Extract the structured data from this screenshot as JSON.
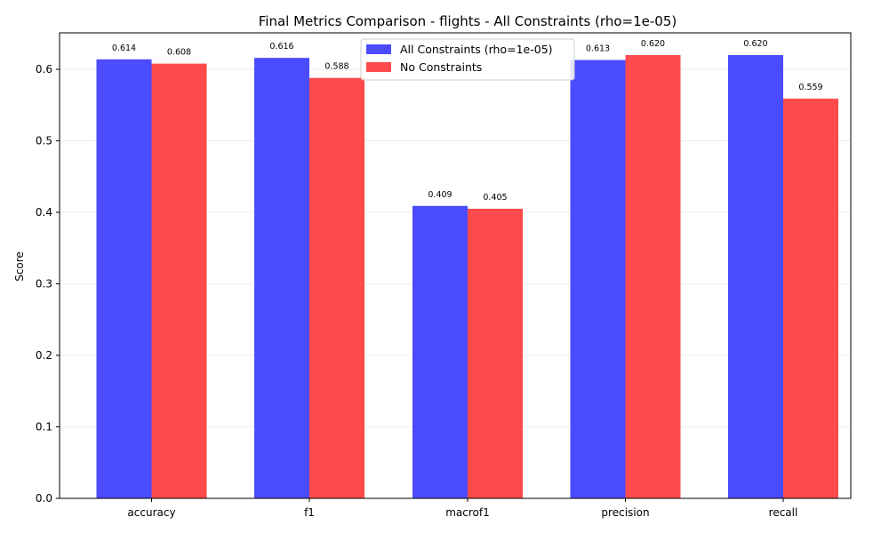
{
  "chart_data": {
    "type": "bar",
    "title": "Final Metrics Comparison - flights - All Constraints (rho=1e-05)",
    "xlabel": "",
    "ylabel": "Score",
    "categories": [
      "accuracy",
      "f1",
      "macrof1",
      "precision",
      "recall"
    ],
    "series": [
      {
        "name": "All Constraints (rho=1e-05)",
        "color": "#4b4bff",
        "values": [
          0.614,
          0.616,
          0.409,
          0.613,
          0.62
        ],
        "labels": [
          "0.614",
          "0.616",
          "0.409",
          "0.613",
          "0.620"
        ]
      },
      {
        "name": "No Constraints",
        "color": "#ff4b4b",
        "values": [
          0.608,
          0.588,
          0.405,
          0.62,
          0.559
        ],
        "labels": [
          "0.608",
          "0.588",
          "0.405",
          "0.620",
          "0.559"
        ]
      }
    ],
    "ylim": [
      0,
      0.651
    ],
    "yticks": [
      0.0,
      0.1,
      0.2,
      0.3,
      0.4,
      0.5,
      0.6
    ],
    "ytick_labels": [
      "0.0",
      "0.1",
      "0.2",
      "0.3",
      "0.4",
      "0.5",
      "0.6"
    ],
    "grid": "horizontal",
    "legend": "top-center"
  }
}
